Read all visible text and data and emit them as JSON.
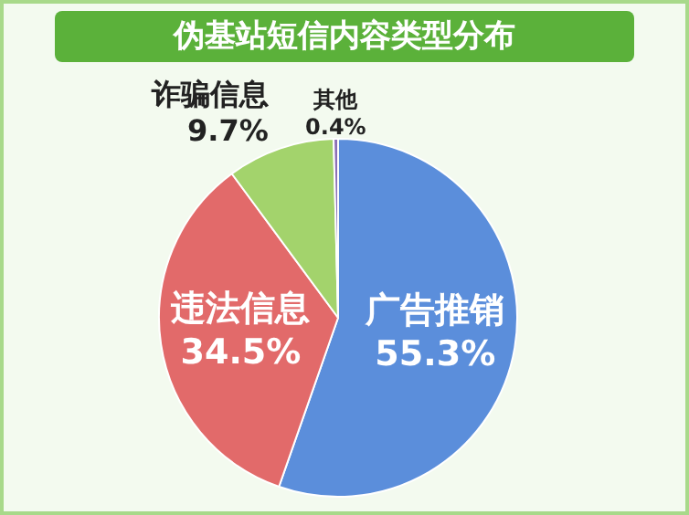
{
  "chart_data": {
    "type": "pie",
    "title": "伪基站短信内容类型分布",
    "categories": [
      "广告推销",
      "违法信息",
      "诈骗信息",
      "其他"
    ],
    "values": [
      55.3,
      34.5,
      9.7,
      0.4
    ],
    "colors": [
      "#5b8edb",
      "#e26a6a",
      "#a3d36c",
      "#8a6fb5"
    ],
    "value_labels": [
      "55.3%",
      "34.5%",
      "9.7%",
      "0.4%"
    ],
    "legend": false
  }
}
